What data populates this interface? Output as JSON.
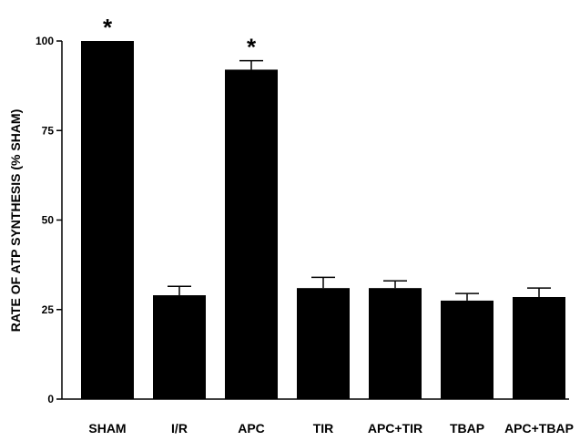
{
  "chart_data": {
    "type": "bar",
    "title": "",
    "xlabel": "",
    "ylabel": "RATE OF ATP SYNTHESIS (% SHAM)",
    "ylim": [
      0,
      100
    ],
    "yticks": [
      0,
      25,
      50,
      75,
      100
    ],
    "categories": [
      "SHAM",
      "I/R",
      "APC",
      "TIR",
      "APC+TIR",
      "TBAP",
      "APC+TBAP"
    ],
    "values": [
      100,
      29,
      92,
      31,
      31,
      27.5,
      28.5
    ],
    "error": [
      0,
      2.5,
      2.5,
      3,
      2,
      2,
      2.5
    ],
    "annotations": [
      "*",
      "",
      "*",
      "",
      "",
      "",
      ""
    ],
    "bar_color": "#000000",
    "grid": false,
    "legend": "none"
  }
}
